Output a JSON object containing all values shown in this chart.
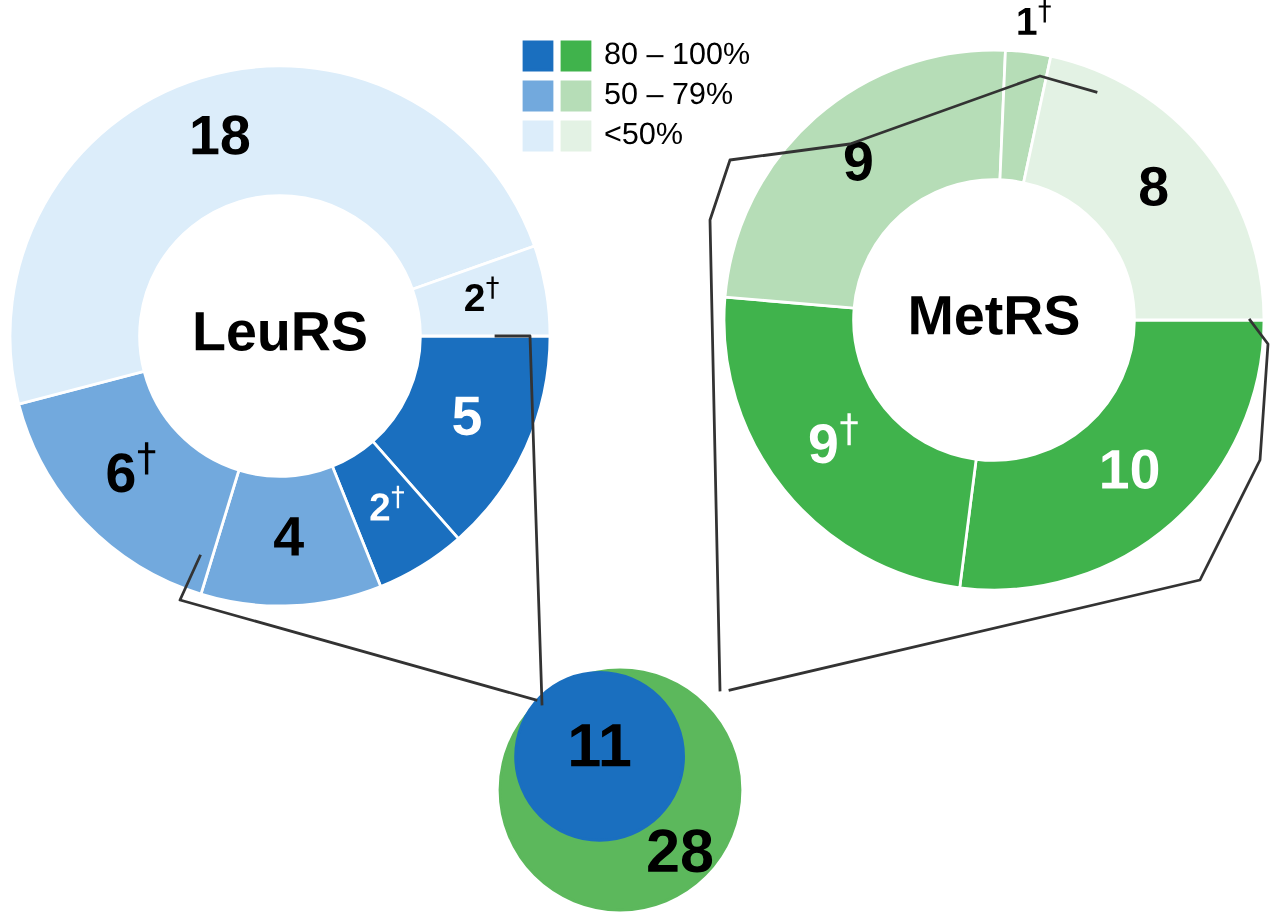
{
  "chart_data": [
    {
      "type": "donut",
      "title": "LeuRS",
      "annotations": [
        "80 – 100%",
        "50 – 79%",
        "<50%"
      ],
      "categories": [
        null,
        null,
        null,
        null,
        null,
        null
      ],
      "values": [
        5,
        2,
        4,
        6,
        18,
        2
      ],
      "value_labels": [
        "5",
        "2$^{†}$",
        "4",
        "6$^{†}$",
        "18",
        "2$^{†}$"
      ],
      "colors": [
        "#1a6fbf",
        "#1a6fbf",
        "#72a9dd",
        "#72a9dd",
        "#dcedfa",
        "#dcedfa"
      ]
    },
    {
      "type": "donut",
      "title": "MetRS",
      "categories": [
        null,
        null,
        null,
        null,
        null
      ],
      "values": [
        10,
        9,
        9,
        1,
        8
      ],
      "value_labels": [
        "10",
        "9$^{†}$",
        "9",
        "1$^{†}$",
        "8"
      ],
      "colors": [
        "#40b34c",
        "#40b34c",
        "#b6ddb7",
        "#b6ddb7",
        "#e3f2e4"
      ]
    },
    {
      "type": "other",
      "values": [
        11,
        28
      ],
      "data_labels": true,
      "colors": [
        "#1a6fbf",
        "#5cb85c"
      ]
    }
  ]
}
